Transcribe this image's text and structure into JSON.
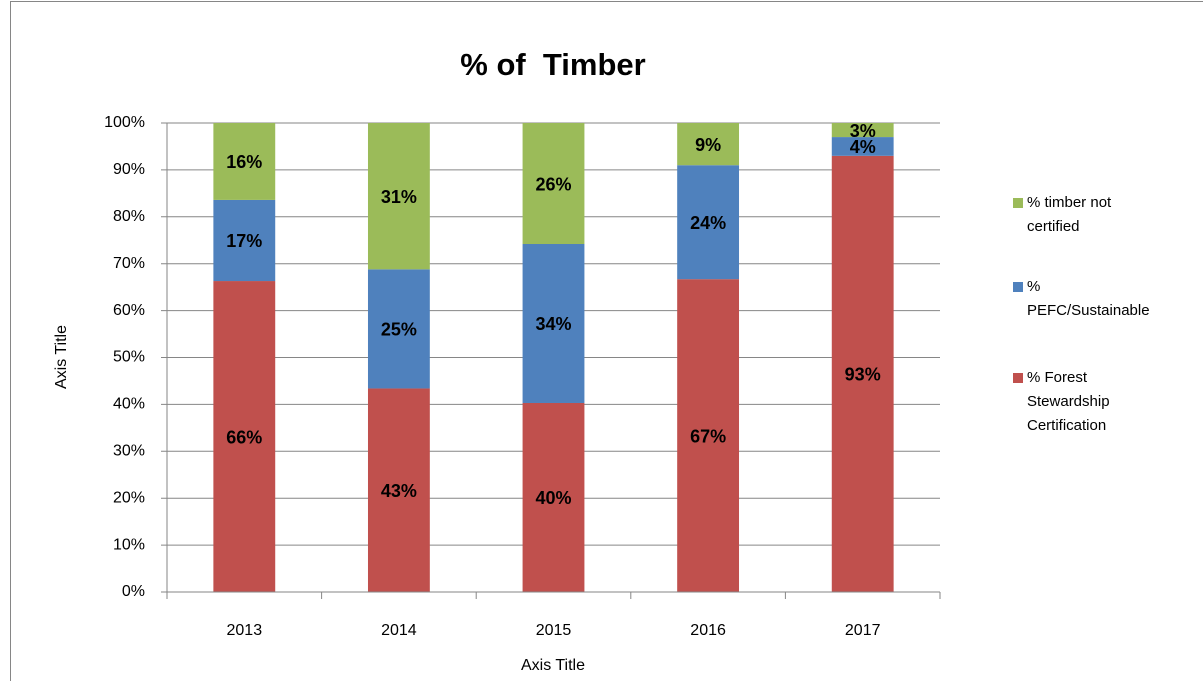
{
  "chart_data": {
    "type": "stacked-bar",
    "title": "% of  Timber",
    "x_label": "Axis Title",
    "y_label": "Axis Title",
    "categories": [
      "2013",
      "2014",
      "2015",
      "2016",
      "2017"
    ],
    "series": [
      {
        "name": "% Forest Stewardship Certification",
        "color": "#c0504d",
        "values": [
          66.3,
          43.4,
          40.3,
          66.7,
          93.0
        ],
        "value_labels": [
          "66%",
          "43%",
          "40%",
          "67%",
          "93%"
        ]
      },
      {
        "name": "% PEFC/Sustainable",
        "color": "#4f81bd",
        "values": [
          17.3,
          25.4,
          33.9,
          24.3,
          4.0
        ],
        "value_labels": [
          "17%",
          "25%",
          "34%",
          "24%",
          "4%"
        ]
      },
      {
        "name": "% timber not certified",
        "color": "#9bbb59",
        "values": [
          16.4,
          31.2,
          25.8,
          9.0,
          3.0
        ],
        "value_labels": [
          "16%",
          "31%",
          "26%",
          "9%",
          "3%"
        ]
      }
    ],
    "ylim": [
      0,
      100
    ],
    "yticks": [
      {
        "value": 0,
        "label": "0%"
      },
      {
        "value": 10,
        "label": "10%"
      },
      {
        "value": 20,
        "label": "20%"
      },
      {
        "value": 30,
        "label": "30%"
      },
      {
        "value": 40,
        "label": "40%"
      },
      {
        "value": 50,
        "label": "50%"
      },
      {
        "value": 60,
        "label": "60%"
      },
      {
        "value": 70,
        "label": "70%"
      },
      {
        "value": 80,
        "label": "80%"
      },
      {
        "value": 90,
        "label": "90%"
      },
      {
        "value": 100,
        "label": "100%"
      }
    ],
    "grid": true,
    "legend": "right"
  }
}
